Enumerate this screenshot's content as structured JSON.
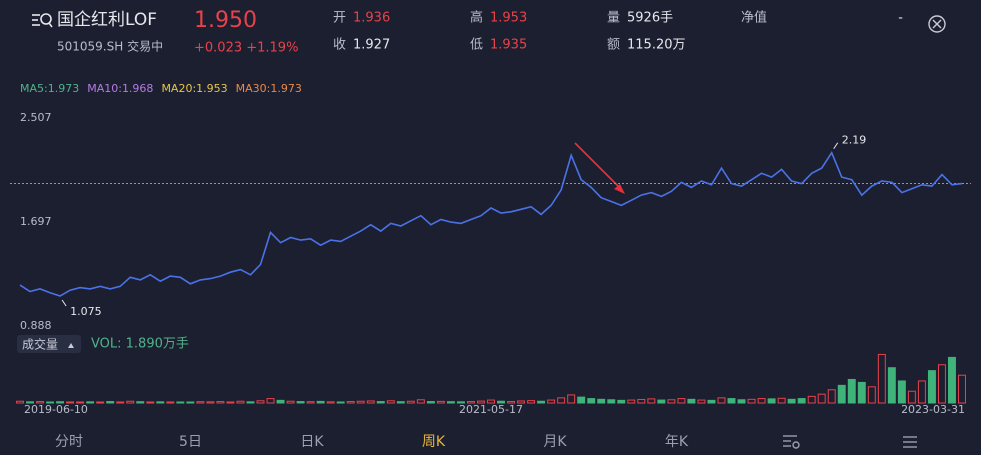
{
  "header": {
    "name": "国企红利LOF",
    "code": "501059.SH 交易中",
    "price": "1.950",
    "change": "+0.023 +1.19%"
  },
  "quote": [
    {
      "label": "开",
      "value": "1.936",
      "color": "#e8424a"
    },
    {
      "label": "高",
      "value": "1.953",
      "color": "#e8424a"
    },
    {
      "label": "量",
      "value": "5926手",
      "color": "#e6e8ee"
    },
    {
      "label": "净值",
      "value": "-",
      "color": "#e6e8ee"
    },
    {
      "label": "收",
      "value": "1.927",
      "color": "#e6e8ee"
    },
    {
      "label": "低",
      "value": "1.935",
      "color": "#e8424a"
    },
    {
      "label": "额",
      "value": "115.20万",
      "color": "#e6e8ee"
    }
  ],
  "chart_data": {
    "type": "line",
    "color": "#4a72e8",
    "ma_legend": [
      {
        "text": "MA5:1.973",
        "color": "#4fb38a"
      },
      {
        "text": "MA10:1.968",
        "color": "#b57be6"
      },
      {
        "text": "MA20:1.953",
        "color": "#e6c44a"
      },
      {
        "text": "MA30:1.973",
        "color": "#e8894a"
      }
    ],
    "ylim": [
      0.888,
      2.507
    ],
    "yticks": [
      0.888,
      1.697,
      2.507
    ],
    "x": [
      "2019-06-10",
      null,
      null,
      null,
      null,
      null,
      null,
      null,
      null,
      null,
      null,
      null,
      null,
      null,
      null,
      null,
      null,
      null,
      null,
      null,
      null,
      null,
      null,
      null,
      null,
      null,
      null,
      null,
      null,
      null,
      null,
      null,
      null,
      null,
      null,
      null,
      null,
      null,
      null,
      null,
      null,
      null,
      null,
      null,
      null,
      null,
      null,
      "2021-05-17",
      null,
      null,
      null,
      null,
      null,
      null,
      null,
      null,
      null,
      null,
      null,
      null,
      null,
      null,
      null,
      null,
      null,
      null,
      null,
      null,
      null,
      null,
      null,
      null,
      null,
      null,
      null,
      null,
      null,
      null,
      null,
      null,
      null,
      null,
      null,
      null,
      null,
      null,
      null,
      null,
      null,
      null,
      null,
      null,
      null,
      null,
      "2023-03-31"
    ],
    "values": [
      1.16,
      1.11,
      1.13,
      1.1,
      1.075,
      1.12,
      1.14,
      1.13,
      1.15,
      1.13,
      1.15,
      1.22,
      1.2,
      1.24,
      1.19,
      1.23,
      1.22,
      1.17,
      1.2,
      1.21,
      1.23,
      1.26,
      1.28,
      1.24,
      1.32,
      1.57,
      1.49,
      1.53,
      1.51,
      1.52,
      1.47,
      1.51,
      1.5,
      1.54,
      1.58,
      1.63,
      1.58,
      1.64,
      1.62,
      1.66,
      1.7,
      1.63,
      1.67,
      1.65,
      1.64,
      1.67,
      1.7,
      1.76,
      1.72,
      1.73,
      1.75,
      1.77,
      1.71,
      1.78,
      1.9,
      2.17,
      1.98,
      1.92,
      1.84,
      1.81,
      1.78,
      1.82,
      1.86,
      1.88,
      1.85,
      1.89,
      1.96,
      1.92,
      1.97,
      1.94,
      2.07,
      1.95,
      1.93,
      1.98,
      2.03,
      2.0,
      2.06,
      1.97,
      1.95,
      2.03,
      2.07,
      2.19,
      2.0,
      1.98,
      1.86,
      1.93,
      1.97,
      1.96,
      1.88,
      1.91,
      1.94,
      1.93,
      2.02,
      1.94,
      1.95
    ],
    "annotations": [
      "1.075",
      "2.19"
    ],
    "volume": {
      "button": "成交量",
      "title": "VOL: 1.890万手",
      "ylim": [
        0,
        3.4
      ],
      "values": [
        0.12,
        0.08,
        0.1,
        0.06,
        0.09,
        0.07,
        0.05,
        0.08,
        0.06,
        0.1,
        0.07,
        0.12,
        0.09,
        0.06,
        0.08,
        0.07,
        0.05,
        0.06,
        0.09,
        0.08,
        0.1,
        0.07,
        0.12,
        0.08,
        0.15,
        0.3,
        0.18,
        0.12,
        0.1,
        0.09,
        0.11,
        0.08,
        0.07,
        0.1,
        0.12,
        0.14,
        0.1,
        0.15,
        0.09,
        0.12,
        0.22,
        0.1,
        0.11,
        0.09,
        0.08,
        0.1,
        0.13,
        0.2,
        0.12,
        0.1,
        0.14,
        0.16,
        0.12,
        0.2,
        0.35,
        0.55,
        0.4,
        0.3,
        0.25,
        0.22,
        0.18,
        0.2,
        0.24,
        0.28,
        0.2,
        0.22,
        0.3,
        0.25,
        0.2,
        0.18,
        0.35,
        0.3,
        0.22,
        0.25,
        0.3,
        0.28,
        0.32,
        0.25,
        0.3,
        0.45,
        0.6,
        0.9,
        1.2,
        1.6,
        1.4,
        1.1,
        3.3,
        2.4,
        1.5,
        0.8,
        1.5,
        2.2,
        2.6,
        3.1,
        1.89
      ]
    }
  },
  "tabs": [
    "分时",
    "5日",
    "日K",
    "周K",
    "月K",
    "年K"
  ],
  "active_tab": "周K"
}
